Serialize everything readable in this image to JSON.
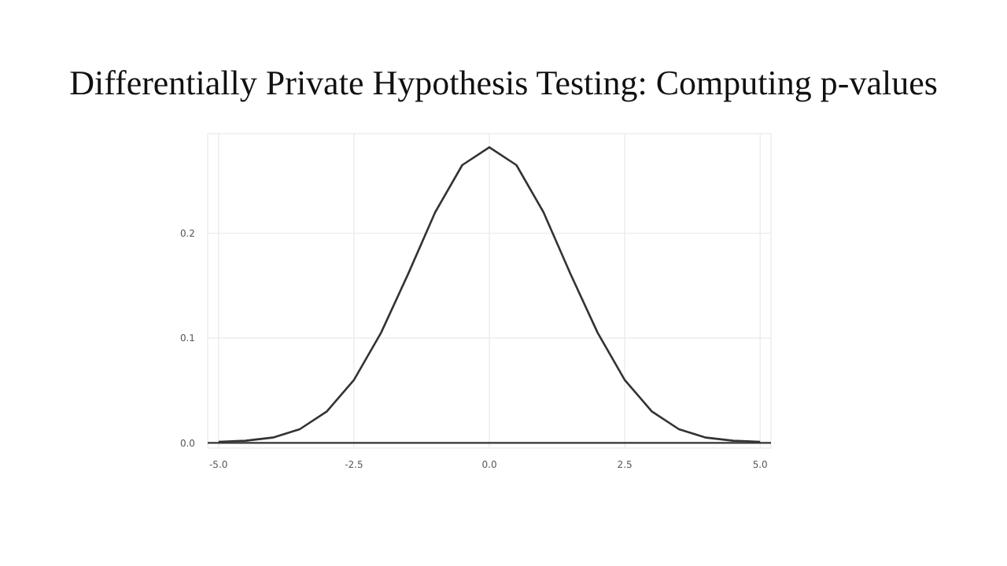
{
  "chart_data": {
    "type": "line",
    "title": "Differentially Private Hypothesis Testing: Computing p-values",
    "x": [
      -5,
      -4.5,
      -4,
      -3.5,
      -3,
      -2.5,
      -2,
      -1.5,
      -1,
      -0.5,
      0,
      0.5,
      1,
      1.5,
      2,
      2.5,
      3,
      3.5,
      4,
      4.5,
      5
    ],
    "series": [
      {
        "color": "#333333",
        "values": [
          0.001,
          0.002,
          0.005,
          0.013,
          0.03,
          0.06,
          0.105,
          0.161,
          0.22,
          0.265,
          0.282,
          0.265,
          0.22,
          0.161,
          0.105,
          0.06,
          0.03,
          0.013,
          0.005,
          0.002,
          0.001
        ]
      }
    ],
    "xlim": [
      -5.2,
      5.2
    ],
    "xticks": [
      {
        "value": -5,
        "label": "-5.0"
      },
      {
        "value": -2.5,
        "label": "-2.5"
      },
      {
        "value": 0,
        "label": "0.0"
      },
      {
        "value": 2.5,
        "label": "2.5"
      },
      {
        "value": 5,
        "label": "5.0"
      }
    ],
    "ylim": [
      -0.005,
      0.295
    ],
    "yticks": [
      {
        "value": 0,
        "label": "0.0"
      },
      0.1,
      0.2
    ],
    "ref_lines": [
      {
        "axis": "y",
        "value": 0,
        "color": "#333333"
      }
    ],
    "grid": true,
    "marker": "none",
    "line_style": "solid"
  }
}
